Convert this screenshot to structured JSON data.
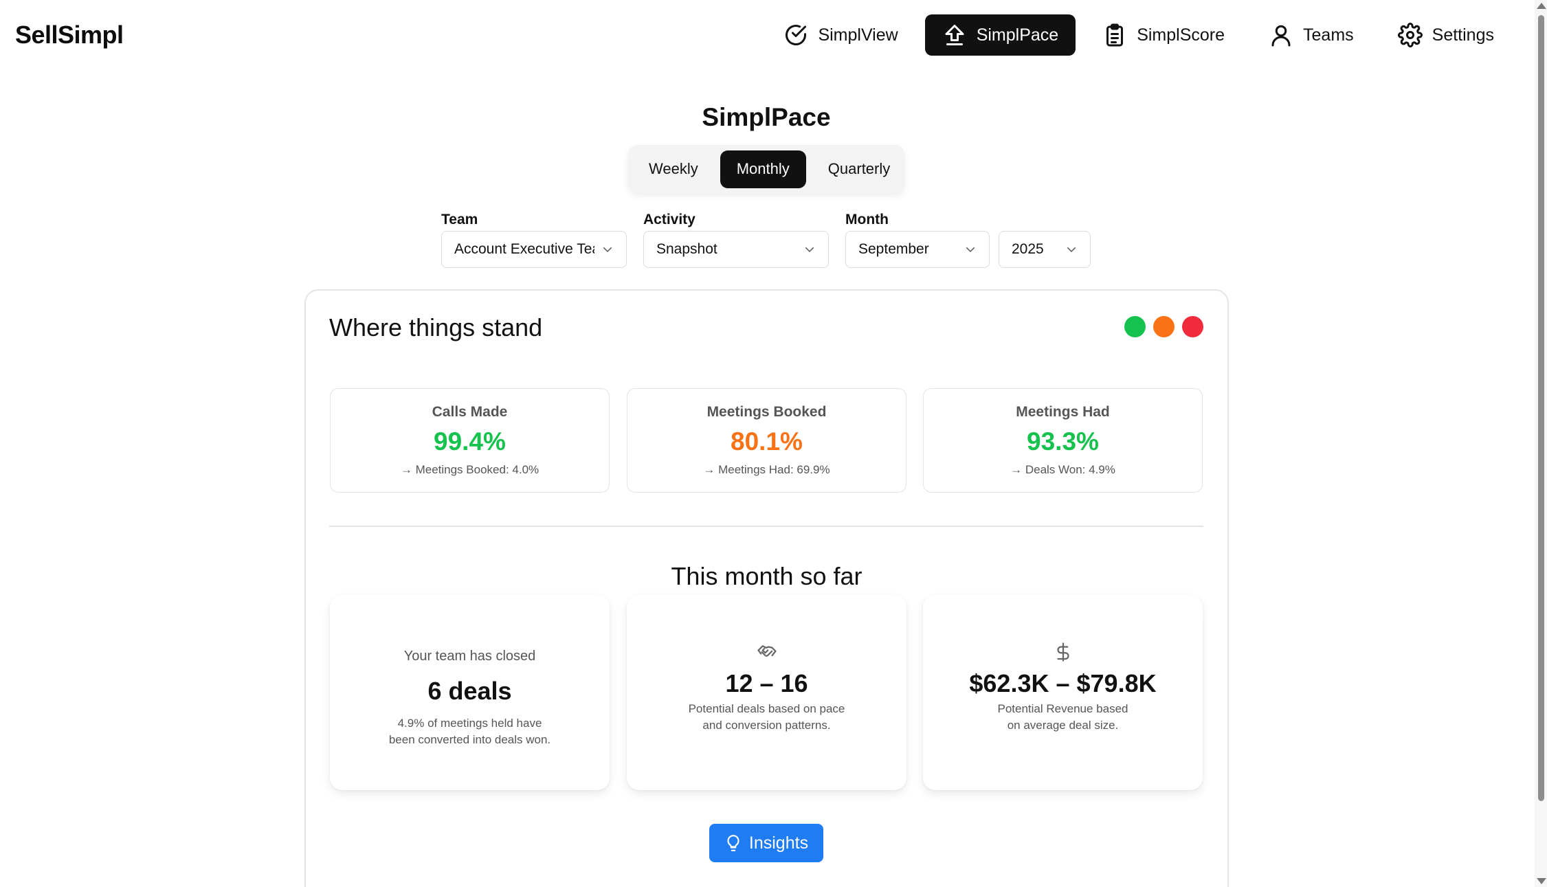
{
  "brand": "SellSimpl",
  "nav": [
    {
      "label": "SimplView",
      "icon": "check-circle-icon",
      "active": false
    },
    {
      "label": "SimplPace",
      "icon": "upload-arrow-icon",
      "active": true
    },
    {
      "label": "SimplScore",
      "icon": "clipboard-icon",
      "active": false
    },
    {
      "label": "Teams",
      "icon": "user-icon",
      "active": false
    },
    {
      "label": "Settings",
      "icon": "gear-icon",
      "active": false
    }
  ],
  "page_title": "SimplPace",
  "periods": [
    {
      "label": "Weekly",
      "active": false
    },
    {
      "label": "Monthly",
      "active": true
    },
    {
      "label": "Quarterly",
      "active": false
    }
  ],
  "filters": {
    "team": {
      "label": "Team",
      "value": "Account Executive Team"
    },
    "activity": {
      "label": "Activity",
      "value": "Snapshot"
    },
    "month": {
      "label": "Month",
      "value": "September"
    },
    "year": {
      "value": "2025"
    }
  },
  "status": {
    "title": "Where things stand",
    "dots": [
      "#16c24e",
      "#f97316",
      "#ef2b3c"
    ],
    "metrics": [
      {
        "label": "Calls Made",
        "value": "99.4%",
        "color": "#16c24e",
        "sub": "→ Meetings Booked: 4.0%"
      },
      {
        "label": "Meetings Booked",
        "value": "80.1%",
        "color": "#f97316",
        "sub": "→ Meetings Had: 69.9%"
      },
      {
        "label": "Meetings Had",
        "value": "93.3%",
        "color": "#16c24e",
        "sub": "→ Deals Won: 4.9%"
      }
    ]
  },
  "month_so_far": {
    "title": "This month so far",
    "closed": {
      "top": "Your team has closed",
      "big": "6 deals",
      "desc_1": "4.9% of meetings held have",
      "desc_2": "been converted into deals won."
    },
    "deals": {
      "icon": "handshake-icon",
      "big": "12 – 16",
      "desc_1": "Potential deals based on pace",
      "desc_2": "and conversion patterns."
    },
    "revenue": {
      "icon": "dollar-icon",
      "big": "$62.3K – $79.8K",
      "desc_1": "Potential Revenue based",
      "desc_2": "on average deal size."
    }
  },
  "insights_button": "Insights"
}
